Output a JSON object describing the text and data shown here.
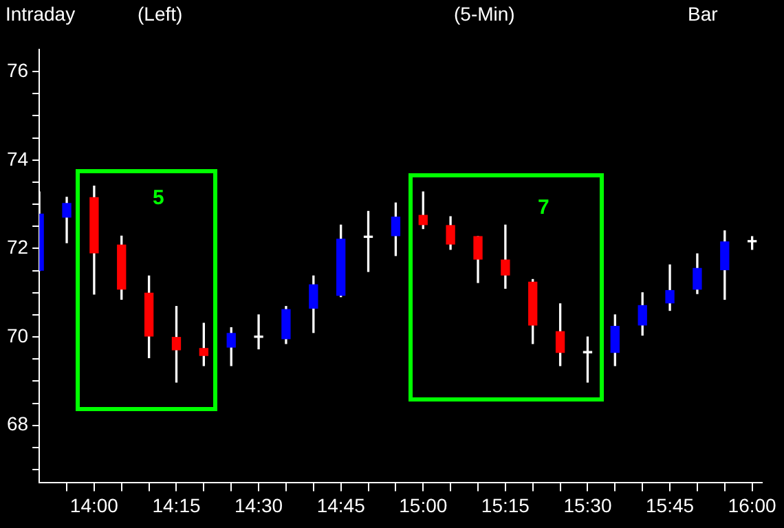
{
  "chart_data": {
    "type": "candlestick",
    "title": "Intraday",
    "annotations": [
      "(Left)",
      "(5-Min)",
      "Bar",
      "5",
      "7"
    ],
    "x": [
      13.8333,
      13.9167,
      14,
      14.0833,
      14.1667,
      14.25,
      14.3333,
      14.4167,
      14.5,
      14.5833,
      14.6667,
      14.75,
      14.8333,
      14.9167,
      15,
      15.0833,
      15.1667,
      15.25,
      15.3333,
      15.4167,
      15.5,
      15.5833,
      15.6667,
      15.75,
      15.8333,
      15.9167,
      16
    ],
    "ohlc": [
      [
        71.51,
        73.28,
        71.5,
        72.78
      ],
      [
        72.71,
        73.16,
        72.13,
        73.02
      ],
      [
        73.15,
        73.41,
        70.97,
        71.9
      ],
      [
        72.08,
        72.28,
        70.85,
        71.08
      ],
      [
        70.99,
        71.38,
        69.53,
        70.02
      ],
      [
        69.99,
        70.69,
        68.98,
        69.71
      ],
      [
        69.74,
        70.31,
        69.35,
        69.58
      ],
      [
        69.77,
        70.21,
        69.35,
        70.08
      ],
      [
        69.99,
        70.5,
        69.73,
        69.99
      ],
      [
        69.96,
        70.69,
        69.85,
        70.62
      ],
      [
        70.65,
        71.38,
        70.1,
        71.18
      ],
      [
        70.94,
        72.53,
        70.91,
        72.21
      ],
      [
        72.25,
        72.84,
        71.48,
        72.25
      ],
      [
        72.29,
        73.03,
        71.84,
        72.71
      ],
      [
        72.75,
        73.28,
        72.45,
        72.54
      ],
      [
        72.52,
        72.72,
        71.98,
        72.1
      ],
      [
        72.27,
        72.27,
        71.23,
        71.76
      ],
      [
        71.74,
        72.53,
        71.1,
        71.4
      ],
      [
        71.24,
        71.3,
        69.85,
        70.27
      ],
      [
        70.12,
        70.75,
        69.35,
        69.65
      ],
      [
        69.64,
        70,
        68.98,
        69.64
      ],
      [
        69.65,
        70.5,
        69.35,
        70.24
      ],
      [
        70.27,
        71,
        70.04,
        70.71
      ],
      [
        70.77,
        71.63,
        70.6,
        71.05
      ],
      [
        71.08,
        71.88,
        70.98,
        71.55
      ],
      [
        71.52,
        72.4,
        70.85,
        72.15
      ],
      [
        72.15,
        72.27,
        71.98,
        72.15
      ]
    ],
    "colors": [
      "#0000ff",
      "#0000ff",
      "#ff0000",
      "#ff0000",
      "#ff0000",
      "#ff0000",
      "#ff0000",
      "#0000ff",
      "#ffffff",
      "#0000ff",
      "#0000ff",
      "#0000ff",
      "#ffffff",
      "#0000ff",
      "#ff0000",
      "#ff0000",
      "#ff0000",
      "#ff0000",
      "#ff0000",
      "#ff0000",
      "#ffffff",
      "#0000ff",
      "#0000ff",
      "#0000ff",
      "#0000ff",
      "#0000ff",
      "#ffffff"
    ],
    "xlim": [
      13.8333,
      16.03
    ],
    "xticks": [
      {
        "value": 13.9167,
        "label": null
      },
      {
        "value": 14,
        "label": "14:00"
      },
      {
        "value": 14.0833,
        "label": null
      },
      {
        "value": 14.1667,
        "label": null
      },
      {
        "value": 14.25,
        "label": "14:15"
      },
      {
        "value": 14.3333,
        "label": null
      },
      {
        "value": 14.4167,
        "label": null
      },
      {
        "value": 14.5,
        "label": "14:30"
      },
      {
        "value": 14.5833,
        "label": null
      },
      {
        "value": 14.6667,
        "label": null
      },
      {
        "value": 14.75,
        "label": "14:45"
      },
      {
        "value": 14.8333,
        "label": null
      },
      {
        "value": 14.9167,
        "label": null
      },
      {
        "value": 15,
        "label": "15:00"
      },
      {
        "value": 15.0833,
        "label": null
      },
      {
        "value": 15.1667,
        "label": null
      },
      {
        "value": 15.25,
        "label": "15:15"
      },
      {
        "value": 15.3333,
        "label": null
      },
      {
        "value": 15.4167,
        "label": null
      },
      {
        "value": 15.5,
        "label": "15:30"
      },
      {
        "value": 15.5833,
        "label": null
      },
      {
        "value": 15.6667,
        "label": null
      },
      {
        "value": 15.75,
        "label": "15:45"
      },
      {
        "value": 15.8333,
        "label": null
      },
      {
        "value": 15.9167,
        "label": null
      },
      {
        "value": 16,
        "label": "16:00"
      }
    ],
    "ylim": [
      66.7,
      76.5
    ],
    "yticks": [
      {
        "value": 67,
        "label": null
      },
      {
        "value": 67.5,
        "label": null
      },
      68,
      {
        "value": 68.5,
        "label": null
      },
      {
        "value": 69,
        "label": null
      },
      {
        "value": 69.5,
        "label": null
      },
      70,
      {
        "value": 70.5,
        "label": null
      },
      {
        "value": 71,
        "label": null
      },
      {
        "value": 71.5,
        "label": null
      },
      72,
      {
        "value": 72.5,
        "label": null
      },
      {
        "value": 73,
        "label": null
      },
      {
        "value": 73.5,
        "label": null
      },
      74,
      {
        "value": 74.5,
        "label": null
      },
      {
        "value": 75,
        "label": null
      },
      {
        "value": 75.5,
        "label": null
      },
      76
    ],
    "grid": false,
    "legend": false
  }
}
